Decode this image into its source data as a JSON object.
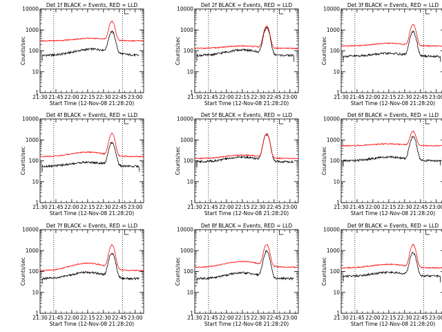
{
  "figure": {
    "panel_count": 9,
    "layout": "3x3 grid"
  },
  "colors": {
    "events": "#000000",
    "lld": "#ff0000",
    "axes": "#000000",
    "background": "#ffffff"
  },
  "chart_data": [
    {
      "type": "line",
      "title": "Det 1f BLACK = Events, RED = LLD",
      "xlabel": "Start Time (12-Nov-08 21:28:20)",
      "ylabel": "Counts/sec",
      "yscale": "log",
      "ylim": [
        1,
        10000
      ],
      "xlim": [
        "21:30",
        "23:08"
      ],
      "x_ticks": [
        "21:30",
        "21:45",
        "22:00",
        "22:15",
        "22:30",
        "22:45",
        "23:00"
      ],
      "y_ticks": [
        "1",
        "10",
        "100",
        "1000",
        "10000"
      ],
      "vlines": [
        "21:43",
        "22:48"
      ],
      "series": [
        {
          "name": "Events",
          "color": "black",
          "shape": {
            "start": "21:32",
            "end": "23:04",
            "base": 60,
            "hump_peak": 120,
            "hump_time": "22:20",
            "hump_width_min": 22,
            "peak_time": "22:38",
            "peak": 800,
            "peak_width_min": 3.2,
            "end_drop": null
          }
        },
        {
          "name": "LLD",
          "color": "red",
          "shape": {
            "start": "21:30",
            "end": "23:08",
            "base": 300,
            "hump_peak": 400,
            "hump_time": "22:18",
            "hump_width_min": 20,
            "peak_time": "22:38",
            "peak": 2500,
            "peak_width_min": 3,
            "end_drop": null
          }
        }
      ]
    },
    {
      "type": "line",
      "title": "Det 2f BLACK = Events, RED = LLD",
      "xlabel": "Start Time (12-Nov-08 21:28:20)",
      "ylabel": "Counts/sec",
      "yscale": "log",
      "ylim": [
        1,
        10000
      ],
      "xlim": [
        "21:30",
        "23:08"
      ],
      "x_ticks": [
        "21:30",
        "21:45",
        "22:00",
        "22:15",
        "22:30",
        "22:45",
        "23:00"
      ],
      "y_ticks": [
        "1",
        "10",
        "100",
        "1000",
        "10000"
      ],
      "vlines": [
        "21:43",
        "22:48"
      ],
      "series": [
        {
          "name": "Events",
          "color": "black",
          "shape": {
            "start": "21:32",
            "end": "23:04",
            "base": 60,
            "hump_peak": 110,
            "hump_time": "22:15",
            "hump_width_min": 20,
            "peak_time": "22:38",
            "peak": 1200,
            "peak_width_min": 3.2,
            "end_drop": 30
          }
        },
        {
          "name": "LLD",
          "color": "red",
          "shape": {
            "start": "21:30",
            "end": "23:08",
            "base": 130,
            "hump_peak": 170,
            "hump_time": "22:15",
            "hump_width_min": 22,
            "peak_time": "22:38",
            "peak": 1500,
            "peak_width_min": 3,
            "end_drop": null
          }
        }
      ]
    },
    {
      "type": "line",
      "title": "Det 3f BLACK = Events, RED = LLD",
      "xlabel": "Start Time (12-Nov-08 21:28:20)",
      "ylabel": "Counts/sec",
      "yscale": "log",
      "ylim": [
        1,
        10000
      ],
      "xlim": [
        "21:30",
        "23:08"
      ],
      "x_ticks": [
        "21:30",
        "21:45",
        "22:00",
        "22:15",
        "22:30",
        "22:45",
        "23:00"
      ],
      "y_ticks": [
        "1",
        "10",
        "100",
        "1000",
        "10000"
      ],
      "vlines": [
        "21:43",
        "22:48"
      ],
      "series": [
        {
          "name": "Events",
          "color": "black",
          "shape": {
            "start": "21:32",
            "end": "23:04",
            "base": 55,
            "hump_peak": 75,
            "hump_time": "22:15",
            "hump_width_min": 20,
            "peak_time": "22:38",
            "peak": 800,
            "peak_width_min": 3.2,
            "end_drop": 30
          }
        },
        {
          "name": "LLD",
          "color": "red",
          "shape": {
            "start": "21:30",
            "end": "23:08",
            "base": 170,
            "hump_peak": 230,
            "hump_time": "22:15",
            "hump_width_min": 20,
            "peak_time": "22:38",
            "peak": 1800,
            "peak_width_min": 3,
            "end_drop": null
          }
        }
      ]
    },
    {
      "type": "line",
      "title": "Det 4f BLACK = Events, RED = LLD",
      "xlabel": "Start Time (12-Nov-08 21:28:20)",
      "ylabel": "Counts/sec",
      "yscale": "log",
      "ylim": [
        1,
        10000
      ],
      "xlim": [
        "21:30",
        "23:08"
      ],
      "x_ticks": [
        "21:30",
        "21:45",
        "22:00",
        "22:15",
        "22:30",
        "22:45",
        "23:00"
      ],
      "y_ticks": [
        "1",
        "10",
        "100",
        "1000",
        "10000"
      ],
      "vlines": [
        "21:43",
        "22:48"
      ],
      "series": [
        {
          "name": "Events",
          "color": "black",
          "shape": {
            "start": "21:32",
            "end": "23:04",
            "base": 55,
            "hump_peak": 85,
            "hump_time": "22:15",
            "hump_width_min": 20,
            "peak_time": "22:38",
            "peak": 750,
            "peak_width_min": 3.2,
            "end_drop": 30
          }
        },
        {
          "name": "LLD",
          "color": "red",
          "shape": {
            "start": "21:30",
            "end": "23:08",
            "base": 160,
            "hump_peak": 260,
            "hump_time": "22:15",
            "hump_width_min": 20,
            "peak_time": "22:38",
            "peak": 2000,
            "peak_width_min": 3,
            "end_drop": null
          }
        }
      ]
    },
    {
      "type": "line",
      "title": "Det 5f BLACK = Events, RED = LLD",
      "xlabel": "Start Time (12-Nov-08 21:28:20)",
      "ylabel": "Counts/sec",
      "yscale": "log",
      "ylim": [
        1,
        10000
      ],
      "xlim": [
        "21:30",
        "23:08"
      ],
      "x_ticks": [
        "21:30",
        "21:45",
        "22:00",
        "22:15",
        "22:30",
        "22:45",
        "23:00"
      ],
      "y_ticks": [
        "1",
        "10",
        "100",
        "1000",
        "10000"
      ],
      "vlines": [
        "21:43",
        "22:48"
      ],
      "series": [
        {
          "name": "Events",
          "color": "black",
          "shape": {
            "start": "21:32",
            "end": "23:04",
            "base": 90,
            "hump_peak": 150,
            "hump_time": "22:15",
            "hump_width_min": 20,
            "peak_time": "22:38",
            "peak": 1800,
            "peak_width_min": 3.2,
            "end_drop": null
          }
        },
        {
          "name": "LLD",
          "color": "red",
          "shape": {
            "start": "21:30",
            "end": "23:08",
            "base": 130,
            "hump_peak": 190,
            "hump_time": "22:15",
            "hump_width_min": 20,
            "peak_time": "22:38",
            "peak": 2000,
            "peak_width_min": 3,
            "end_drop": null
          }
        }
      ]
    },
    {
      "type": "line",
      "title": "Det 6f BLACK = Events, RED = LLD",
      "xlabel": "Start Time (12-Nov-08 21:28:20)",
      "ylabel": "Counts/sec",
      "yscale": "log",
      "ylim": [
        1,
        10000
      ],
      "xlim": [
        "21:30",
        "23:08"
      ],
      "x_ticks": [
        "21:30",
        "21:45",
        "22:00",
        "22:15",
        "22:30",
        "22:45",
        "23:00"
      ],
      "y_ticks": [
        "1",
        "10",
        "100",
        "1000",
        "10000"
      ],
      "vlines": [
        "21:43",
        "22:48"
      ],
      "series": [
        {
          "name": "Events",
          "color": "black",
          "shape": {
            "start": "21:32",
            "end": "23:04",
            "base": 100,
            "hump_peak": 150,
            "hump_time": "22:15",
            "hump_width_min": 20,
            "peak_time": "22:38",
            "peak": 1400,
            "peak_width_min": 3.2,
            "end_drop": 60
          }
        },
        {
          "name": "LLD",
          "color": "red",
          "shape": {
            "start": "21:30",
            "end": "23:08",
            "base": 520,
            "hump_peak": 650,
            "hump_time": "22:15",
            "hump_width_min": 20,
            "peak_time": "22:38",
            "peak": 2500,
            "peak_width_min": 3,
            "end_drop": null
          }
        }
      ]
    },
    {
      "type": "line",
      "title": "Det 7f BLACK = Events, RED = LLD",
      "xlabel": "Start Time (12-Nov-08 21:28:20)",
      "ylabel": "Counts/sec",
      "yscale": "log",
      "ylim": [
        1,
        10000
      ],
      "xlim": [
        "21:30",
        "23:08"
      ],
      "x_ticks": [
        "21:30",
        "21:45",
        "22:00",
        "22:15",
        "22:30",
        "22:45",
        "23:00"
      ],
      "y_ticks": [
        "1",
        "10",
        "100",
        "1000",
        "10000"
      ],
      "vlines": [
        "21:43",
        "22:48"
      ],
      "series": [
        {
          "name": "Events",
          "color": "black",
          "shape": {
            "start": "21:32",
            "end": "23:04",
            "base": 45,
            "hump_peak": 90,
            "hump_time": "22:15",
            "hump_width_min": 20,
            "peak_time": "22:38",
            "peak": 750,
            "peak_width_min": 3.2,
            "end_drop": null
          }
        },
        {
          "name": "LLD",
          "color": "red",
          "shape": {
            "start": "21:30",
            "end": "23:08",
            "base": 110,
            "hump_peak": 250,
            "hump_time": "22:15",
            "hump_width_min": 20,
            "peak_time": "22:38",
            "peak": 1800,
            "peak_width_min": 3,
            "end_drop": null
          }
        }
      ]
    },
    {
      "type": "line",
      "title": "Det 8f BLACK = Events, RED = LLD",
      "xlabel": "Start Time (12-Nov-08 21:28:20)",
      "ylabel": "Counts/sec",
      "yscale": "log",
      "ylim": [
        1,
        10000
      ],
      "xlim": [
        "21:30",
        "23:08"
      ],
      "x_ticks": [
        "21:30",
        "21:45",
        "22:00",
        "22:15",
        "22:30",
        "22:45",
        "23:00"
      ],
      "y_ticks": [
        "1",
        "10",
        "100",
        "1000",
        "10000"
      ],
      "vlines": [
        "21:43",
        "22:48"
      ],
      "series": [
        {
          "name": "Events",
          "color": "black",
          "shape": {
            "start": "21:32",
            "end": "23:04",
            "base": 45,
            "hump_peak": 85,
            "hump_time": "22:15",
            "hump_width_min": 20,
            "peak_time": "22:38",
            "peak": 900,
            "peak_width_min": 3.2,
            "end_drop": null
          }
        },
        {
          "name": "LLD",
          "color": "red",
          "shape": {
            "start": "21:30",
            "end": "23:08",
            "base": 160,
            "hump_peak": 300,
            "hump_time": "22:15",
            "hump_width_min": 20,
            "peak_time": "22:38",
            "peak": 1900,
            "peak_width_min": 3,
            "end_drop": null
          }
        }
      ]
    },
    {
      "type": "line",
      "title": "Det 9f BLACK = Events, RED = LLD",
      "xlabel": "Start Time (12-Nov-08 21:28:20)",
      "ylabel": "Counts/sec",
      "yscale": "log",
      "ylim": [
        1,
        10000
      ],
      "xlim": [
        "21:30",
        "23:08"
      ],
      "x_ticks": [
        "21:30",
        "21:45",
        "22:00",
        "22:15",
        "22:30",
        "22:45",
        "23:00"
      ],
      "y_ticks": [
        "1",
        "10",
        "100",
        "1000",
        "10000"
      ],
      "vlines": [
        "21:43",
        "22:48"
      ],
      "series": [
        {
          "name": "Events",
          "color": "black",
          "shape": {
            "start": "21:32",
            "end": "23:04",
            "base": 60,
            "hump_peak": 90,
            "hump_time": "22:15",
            "hump_width_min": 20,
            "peak_time": "22:38",
            "peak": 800,
            "peak_width_min": 3.2,
            "end_drop": 30
          }
        },
        {
          "name": "LLD",
          "color": "red",
          "shape": {
            "start": "21:30",
            "end": "23:08",
            "base": 150,
            "hump_peak": 220,
            "hump_time": "22:15",
            "hump_width_min": 20,
            "peak_time": "22:38",
            "peak": 1900,
            "peak_width_min": 3,
            "end_drop": null
          }
        }
      ]
    }
  ]
}
